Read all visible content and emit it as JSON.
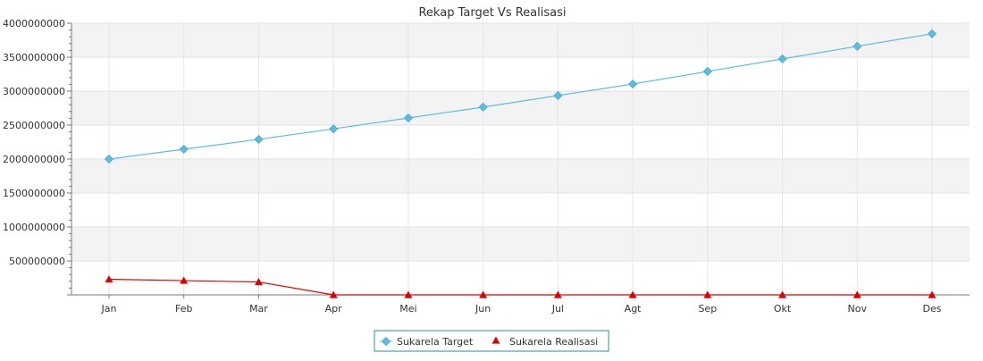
{
  "chart_data": {
    "type": "line",
    "title": "Rekap Target Vs Realisasi",
    "xlabel": "",
    "ylabel": "",
    "categories": [
      "Jan",
      "Feb",
      "Mar",
      "Apr",
      "Mei",
      "Jun",
      "Jul",
      "Agt",
      "Sep",
      "Okt",
      "Nov",
      "Des"
    ],
    "ylim": [
      0,
      4000000000
    ],
    "yticks": [
      500000000,
      1000000000,
      1500000000,
      2000000000,
      2500000000,
      3000000000,
      3500000000,
      4000000000
    ],
    "ytick_labels": [
      "500000000",
      "1000000000",
      "1500000000",
      "2000000000",
      "2500000000",
      "3000000000",
      "3500000000",
      "4000000000"
    ],
    "grid": true,
    "legend_position": "bottom-center",
    "series": [
      {
        "name": "Sukarela Target",
        "color": "#5bbde0",
        "marker": "diamond",
        "values": [
          2000000000,
          2145000000,
          2290000000,
          2445000000,
          2605000000,
          2765000000,
          2935000000,
          3105000000,
          3290000000,
          3475000000,
          3660000000,
          3845000000
        ]
      },
      {
        "name": "Sukarela Realisasi",
        "color": "#e00000",
        "marker": "triangle",
        "values": [
          230000000,
          210000000,
          190000000,
          0,
          0,
          0,
          0,
          0,
          0,
          0,
          0,
          0
        ]
      }
    ]
  }
}
